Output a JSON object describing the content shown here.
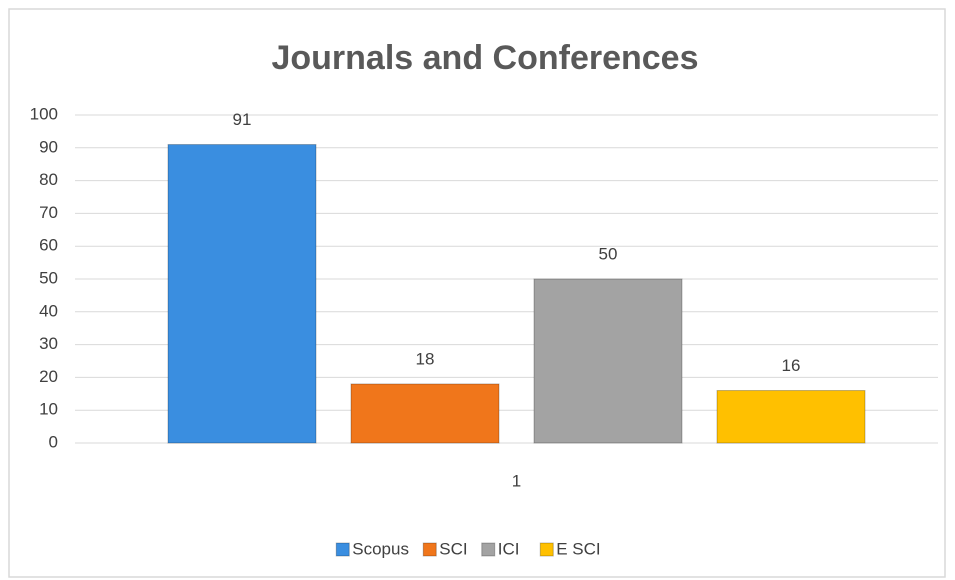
{
  "chart_data": {
    "type": "bar",
    "title": "Journals and Conferences",
    "categories": [
      "1"
    ],
    "series": [
      {
        "name": "Scopus",
        "color": "#3a8ee0",
        "values": [
          91
        ]
      },
      {
        "name": "SCI",
        "color": "#f0761b",
        "values": [
          18
        ]
      },
      {
        "name": "ICI",
        "color": "#a3a3a3",
        "values": [
          50
        ]
      },
      {
        "name": "E SCI",
        "color": "#ffc000",
        "values": [
          16
        ]
      }
    ],
    "ylim": [
      0,
      100
    ],
    "yticks": [
      0,
      10,
      20,
      30,
      40,
      50,
      60,
      70,
      80,
      90,
      100
    ],
    "grid": true,
    "legend": "bottom"
  }
}
